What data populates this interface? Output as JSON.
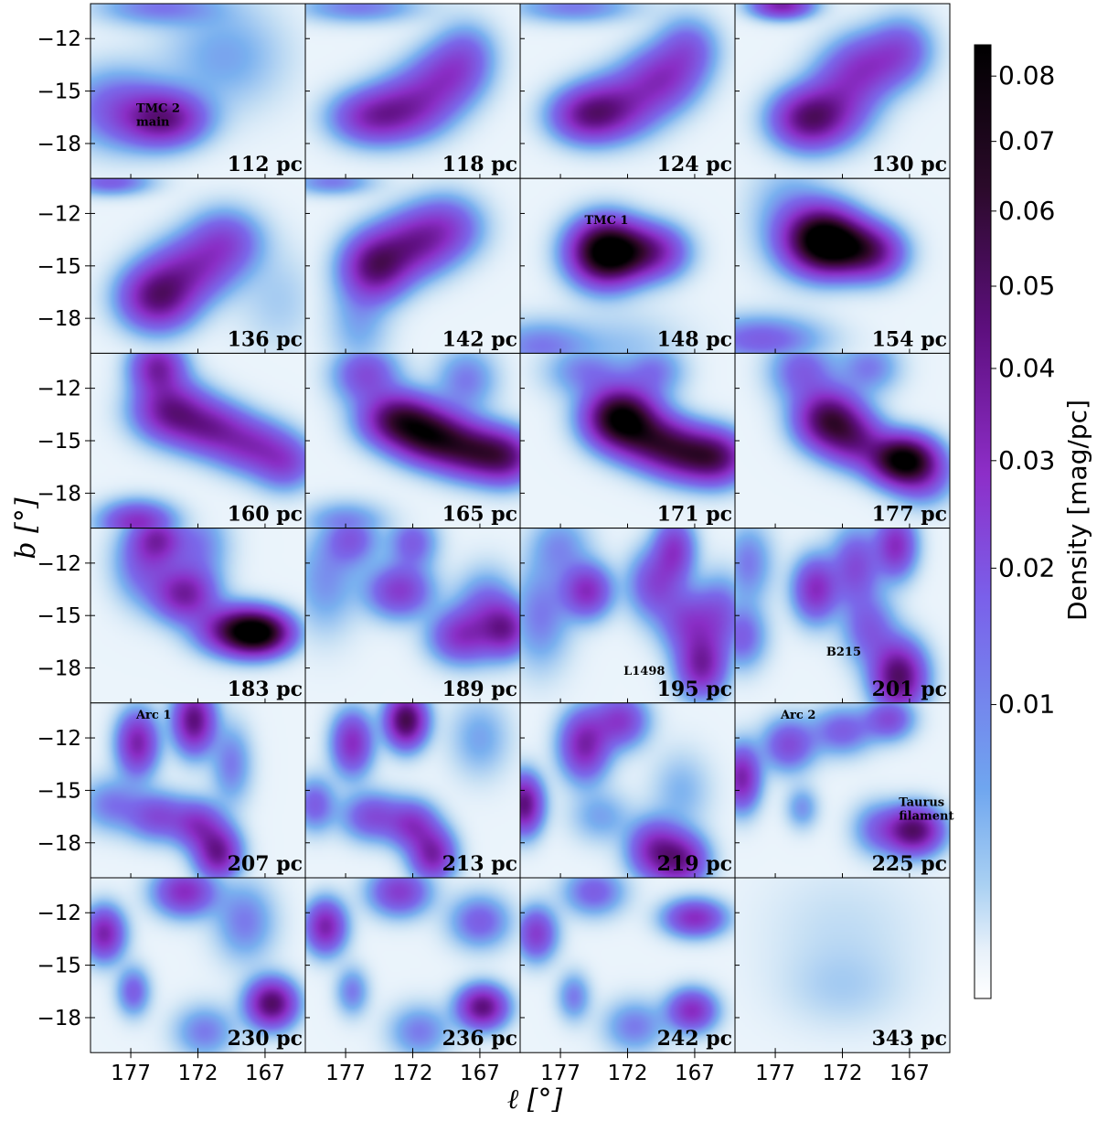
{
  "chart_data": {
    "type": "heatmap",
    "xlabel": "ℓ [°]",
    "ylabel": "b [°]",
    "x_ticks": [
      177,
      172,
      167
    ],
    "y_ticks": [
      -12,
      -15,
      -18
    ],
    "xlim": [
      180,
      164
    ],
    "ylim": [
      -20,
      -10
    ],
    "colorbar": {
      "label": "Density [mag/pc]",
      "ticks": [
        0.01,
        0.02,
        0.03,
        0.04,
        0.05,
        0.06,
        0.07,
        0.08
      ],
      "tick_labels": [
        "0.01",
        "0.02",
        "0.03",
        "0.04",
        "0.05",
        "0.06",
        "0.07",
        "0.08"
      ],
      "range": [
        0.0,
        0.085
      ],
      "colors": [
        "#ffffff",
        "#c5dff4",
        "#79b0ef",
        "#7a69ea",
        "#8a2ec6",
        "#5e0f7f",
        "#35082f",
        "#000000"
      ]
    },
    "grid": false,
    "panels": [
      {
        "distance": "112 pc",
        "annotations": [
          {
            "text": "TMC 2\nmain",
            "l": 176.6,
            "b": -16.2
          }
        ],
        "blobs": [
          [
            174.5,
            -16.6,
            0.045,
            2.0,
            1.0
          ],
          [
            178,
            -16,
            0.02,
            2.5,
            1.5
          ],
          [
            175,
            -10.2,
            0.015,
            3,
            0.7
          ],
          [
            170,
            -13,
            0.01,
            3,
            2
          ]
        ]
      },
      {
        "distance": "118 pc",
        "annotations": [],
        "blobs": [
          [
            175,
            -16.5,
            0.035,
            2.0,
            1.0
          ],
          [
            172,
            -15.8,
            0.03,
            2.0,
            1.2
          ],
          [
            169.5,
            -14.2,
            0.025,
            1.8,
            1.2
          ],
          [
            168,
            -12.8,
            0.015,
            1.5,
            1.2
          ],
          [
            176,
            -10.2,
            0.015,
            3,
            0.6
          ]
        ]
      },
      {
        "distance": "124 pc",
        "annotations": [],
        "blobs": [
          [
            175,
            -16.4,
            0.04,
            1.8,
            1.0
          ],
          [
            172.5,
            -15.8,
            0.03,
            2.0,
            1.2
          ],
          [
            169.5,
            -14.3,
            0.03,
            1.8,
            1.2
          ],
          [
            167.5,
            -12.6,
            0.02,
            1.5,
            1.2
          ],
          [
            176,
            -10.2,
            0.015,
            3,
            0.6
          ]
        ]
      },
      {
        "distance": "130 pc",
        "annotations": [],
        "blobs": [
          [
            174.5,
            -16.6,
            0.05,
            1.8,
            1.1
          ],
          [
            172,
            -15.3,
            0.025,
            1.8,
            1.5
          ],
          [
            170,
            -13.5,
            0.025,
            1.8,
            1.2
          ],
          [
            167.5,
            -12.6,
            0.02,
            1.5,
            1.2
          ],
          [
            176.5,
            -10.1,
            0.04,
            1.5,
            0.5
          ]
        ]
      },
      {
        "distance": "136 pc",
        "annotations": [],
        "blobs": [
          [
            175,
            -16.8,
            0.05,
            1.8,
            1.2
          ],
          [
            172.5,
            -15.2,
            0.03,
            2.0,
            1.2
          ],
          [
            170,
            -13.6,
            0.025,
            1.8,
            1.2
          ],
          [
            178.5,
            -10.2,
            0.02,
            2.0,
            0.5
          ],
          [
            166,
            -17,
            0.005,
            2,
            2
          ]
        ]
      },
      {
        "distance": "142 pc",
        "annotations": [],
        "blobs": [
          [
            174.7,
            -15.0,
            0.05,
            1.6,
            1.2
          ],
          [
            172,
            -13.8,
            0.035,
            1.8,
            1.2
          ],
          [
            169.5,
            -12.8,
            0.025,
            1.8,
            1.2
          ],
          [
            176,
            -18,
            0.01,
            1.5,
            2
          ],
          [
            178,
            -10.2,
            0.015,
            2,
            0.5
          ]
        ]
      },
      {
        "distance": "148 pc",
        "annotations": [
          {
            "text": "TMC 1",
            "l": 175.2,
            "b": -12.6
          }
        ],
        "blobs": [
          [
            173.7,
            -14.2,
            0.085,
            1.7,
            1.2
          ],
          [
            171.5,
            -14.2,
            0.035,
            1.8,
            1.0
          ],
          [
            169.5,
            -14.2,
            0.02,
            1.5,
            1.0
          ],
          [
            178.5,
            -19.6,
            0.015,
            2.5,
            1
          ],
          [
            172,
            -19.8,
            0.006,
            3,
            1.5
          ]
        ]
      },
      {
        "distance": "154 pc",
        "annotations": [],
        "blobs": [
          [
            173.5,
            -13.5,
            0.085,
            1.8,
            1.2
          ],
          [
            171.5,
            -14.0,
            0.04,
            1.8,
            1.0
          ],
          [
            169.5,
            -14.3,
            0.03,
            1.5,
            1.0
          ],
          [
            176,
            -12,
            0.01,
            2,
            2
          ],
          [
            178,
            -19.2,
            0.02,
            3,
            0.9
          ]
        ]
      },
      {
        "distance": "160 pc",
        "annotations": [],
        "blobs": [
          [
            175,
            -10.8,
            0.04,
            1.3,
            1.0
          ],
          [
            174,
            -13.3,
            0.045,
            1.8,
            1.1
          ],
          [
            171,
            -14.3,
            0.035,
            1.8,
            1.0
          ],
          [
            168,
            -15.3,
            0.03,
            1.8,
            1.0
          ],
          [
            165.5,
            -16.3,
            0.025,
            1.5,
            1.0
          ],
          [
            176.5,
            -19.7,
            0.035,
            1.8,
            0.8
          ]
        ]
      },
      {
        "distance": "165 pc",
        "annotations": [],
        "blobs": [
          [
            175.5,
            -11.2,
            0.025,
            1.6,
            1.1
          ],
          [
            173,
            -13.8,
            0.06,
            1.8,
            1.0
          ],
          [
            170.5,
            -14.8,
            0.06,
            1.8,
            1.0
          ],
          [
            167.5,
            -15.6,
            0.05,
            1.8,
            1.0
          ],
          [
            165,
            -16,
            0.04,
            1.5,
            1.0
          ],
          [
            168,
            -11.5,
            0.015,
            1.5,
            1.2
          ],
          [
            177,
            -19.7,
            0.015,
            2,
            0.8
          ]
        ]
      },
      {
        "distance": "171 pc",
        "annotations": [],
        "blobs": [
          [
            172.5,
            -13.7,
            0.085,
            1.7,
            1.1
          ],
          [
            170,
            -15.0,
            0.045,
            1.8,
            1.0
          ],
          [
            167.5,
            -15.8,
            0.045,
            1.8,
            1.0
          ],
          [
            165.2,
            -16.0,
            0.04,
            1.5,
            1.0
          ],
          [
            175,
            -11,
            0.015,
            2,
            1
          ],
          [
            170,
            -11,
            0.015,
            1.5,
            1
          ]
        ]
      },
      {
        "distance": "177 pc",
        "annotations": [],
        "blobs": [
          [
            173,
            -13.8,
            0.06,
            1.6,
            1.1
          ],
          [
            171,
            -15.0,
            0.035,
            1.5,
            1.0
          ],
          [
            167.5,
            -16.1,
            0.085,
            1.6,
            0.9
          ],
          [
            175,
            -11,
            0.02,
            1.6,
            1.2
          ],
          [
            170,
            -10.8,
            0.015,
            1.5,
            1.0
          ],
          [
            166,
            -17.2,
            0.02,
            1.5,
            1
          ]
        ]
      },
      {
        "distance": "183 pc",
        "annotations": [],
        "blobs": [
          [
            175,
            -10.6,
            0.03,
            1.2,
            0.9
          ],
          [
            173,
            -13.8,
            0.04,
            1.5,
            1.0
          ],
          [
            169.5,
            -15.8,
            0.04,
            1.8,
            0.9
          ],
          [
            167.5,
            -16.0,
            0.08,
            1.6,
            0.8
          ],
          [
            176,
            -12,
            0.02,
            1.5,
            1.5
          ],
          [
            172,
            -11,
            0.015,
            1.5,
            1.5
          ]
        ]
      },
      {
        "distance": "189 pc",
        "annotations": [],
        "blobs": [
          [
            176.5,
            -10.6,
            0.02,
            1.3,
            1.0
          ],
          [
            173,
            -13.6,
            0.03,
            1.6,
            1.0
          ],
          [
            168.5,
            -16.2,
            0.03,
            1.5,
            1.0
          ],
          [
            166.5,
            -14.8,
            0.02,
            1.5,
            1.5
          ],
          [
            165,
            -15.8,
            0.035,
            1.2,
            1.0
          ],
          [
            178.5,
            -13,
            0.012,
            1.6,
            2
          ],
          [
            172,
            -10.8,
            0.02,
            1.2,
            1.0
          ]
        ]
      },
      {
        "distance": "195 pc",
        "annotations": [
          {
            "text": "L1498",
            "l": 172.3,
            "b": -18.4
          }
        ],
        "blobs": [
          [
            175,
            -13.6,
            0.035,
            1.2,
            1.0
          ],
          [
            170,
            -13.2,
            0.025,
            1.3,
            1.3
          ],
          [
            167.5,
            -15.4,
            0.025,
            1.4,
            1.2
          ],
          [
            166.5,
            -17.9,
            0.04,
            1.2,
            1.2
          ],
          [
            165,
            -15,
            0.02,
            1.3,
            1.5
          ],
          [
            168.5,
            -11.2,
            0.03,
            1.0,
            1.2
          ],
          [
            178.5,
            -15,
            0.015,
            1.5,
            2
          ],
          [
            177,
            -11,
            0.012,
            1.5,
            1.2
          ]
        ]
      },
      {
        "distance": "201 pc",
        "annotations": [
          {
            "text": "B215",
            "l": 173.2,
            "b": -17.3
          }
        ],
        "blobs": [
          [
            174,
            -13.5,
            0.035,
            1.1,
            1.2
          ],
          [
            171,
            -12.2,
            0.025,
            1.2,
            1.5
          ],
          [
            168,
            -11,
            0.035,
            1.0,
            1.2
          ],
          [
            167.8,
            -18.5,
            0.055,
            1.3,
            1.3
          ],
          [
            170,
            -15.8,
            0.02,
            1.3,
            1.3
          ],
          [
            179.5,
            -16.2,
            0.02,
            1.2,
            1.2
          ],
          [
            179,
            -12,
            0.015,
            1.2,
            1.5
          ]
        ]
      },
      {
        "distance": "207 pc",
        "annotations": [
          {
            "text": "Arc 1",
            "l": 176.6,
            "b": -10.9
          }
        ],
        "blobs": [
          [
            176.5,
            -12.3,
            0.04,
            1.0,
            1.2
          ],
          [
            172.3,
            -11.0,
            0.05,
            1.0,
            1.2
          ],
          [
            175,
            -16.5,
            0.025,
            1.5,
            0.9
          ],
          [
            172,
            -17,
            0.03,
            1.2,
            0.9
          ],
          [
            170.5,
            -18.6,
            0.045,
            1.1,
            1.0
          ],
          [
            169.5,
            -13.5,
            0.015,
            1.0,
            1.5
          ],
          [
            178.5,
            -15.8,
            0.015,
            1.5,
            1.0
          ]
        ]
      },
      {
        "distance": "213 pc",
        "annotations": [],
        "blobs": [
          [
            176.5,
            -12.3,
            0.035,
            1.0,
            1.2
          ],
          [
            172.5,
            -11.0,
            0.06,
            1.0,
            1.0
          ],
          [
            175,
            -16.5,
            0.025,
            1.5,
            0.9
          ],
          [
            172,
            -17,
            0.03,
            1.2,
            0.9
          ],
          [
            170.5,
            -18.7,
            0.04,
            1.1,
            1.0
          ],
          [
            179.3,
            -15.8,
            0.02,
            1.0,
            1.0
          ],
          [
            167,
            -12,
            0.01,
            1.5,
            1.5
          ]
        ]
      },
      {
        "distance": "219 pc",
        "annotations": [],
        "blobs": [
          [
            179.7,
            -15.8,
            0.05,
            0.9,
            1.1
          ],
          [
            175.2,
            -12.4,
            0.04,
            1.2,
            1.3
          ],
          [
            172.5,
            -11,
            0.03,
            1.3,
            1.0
          ],
          [
            170,
            -18.4,
            0.035,
            1.3,
            1.1
          ],
          [
            168,
            -19,
            0.04,
            1.3,
            1.0
          ],
          [
            174,
            -16.5,
            0.01,
            1.5,
            1.0
          ],
          [
            168,
            -15,
            0.008,
            1.5,
            1.5
          ]
        ]
      },
      {
        "distance": "225 pc",
        "annotations": [
          {
            "text": "Arc 2",
            "l": 176.6,
            "b": -10.9
          },
          {
            "text": "Taurus\nfilament",
            "l": 167.8,
            "b": -15.9
          }
        ],
        "blobs": [
          [
            179.5,
            -14.3,
            0.04,
            0.9,
            1.2
          ],
          [
            176,
            -12.4,
            0.025,
            1.3,
            1.0
          ],
          [
            172,
            -11.6,
            0.02,
            1.5,
            0.9
          ],
          [
            168.5,
            -10.9,
            0.025,
            1.2,
            0.8
          ],
          [
            166.7,
            -17.3,
            0.055,
            1.4,
            0.9
          ],
          [
            175,
            -16,
            0.012,
            0.8,
            0.8
          ],
          [
            169.5,
            -17.2,
            0.015,
            1.2,
            1.0
          ]
        ]
      },
      {
        "distance": "230 pc",
        "annotations": [],
        "blobs": [
          [
            179,
            -13.2,
            0.04,
            1.0,
            1.0
          ],
          [
            173,
            -10.8,
            0.035,
            1.5,
            0.9
          ],
          [
            168.5,
            -12.5,
            0.015,
            1.5,
            1.5
          ],
          [
            166.5,
            -17.2,
            0.055,
            1.2,
            0.9
          ],
          [
            176.8,
            -16.5,
            0.02,
            0.8,
            0.9
          ],
          [
            171.5,
            -18.8,
            0.015,
            1.5,
            1.0
          ]
        ]
      },
      {
        "distance": "236 pc",
        "annotations": [],
        "blobs": [
          [
            178.5,
            -12.8,
            0.04,
            1.0,
            1.0
          ],
          [
            173,
            -10.8,
            0.03,
            1.5,
            0.9
          ],
          [
            167,
            -12.5,
            0.02,
            1.5,
            1.0
          ],
          [
            166.8,
            -17.4,
            0.05,
            1.2,
            0.8
          ],
          [
            176.5,
            -16.5,
            0.015,
            0.8,
            0.9
          ],
          [
            171.5,
            -18.8,
            0.015,
            1.5,
            1.0
          ]
        ]
      },
      {
        "distance": "242 pc",
        "annotations": [],
        "blobs": [
          [
            178.8,
            -13.2,
            0.03,
            1.0,
            1.0
          ],
          [
            174.5,
            -10.8,
            0.02,
            1.5,
            0.9
          ],
          [
            167,
            -12.3,
            0.035,
            1.5,
            0.7
          ],
          [
            167.2,
            -17.6,
            0.035,
            1.2,
            0.8
          ],
          [
            176,
            -16.8,
            0.015,
            0.8,
            0.9
          ],
          [
            171.5,
            -18.5,
            0.015,
            1.5,
            1.0
          ]
        ]
      },
      {
        "distance": "343 pc",
        "annotations": [],
        "blobs": [
          [
            172,
            -16.4,
            0.004,
            3.0,
            1.5
          ],
          [
            172,
            -13,
            0.003,
            4.0,
            2.5
          ]
        ]
      }
    ]
  }
}
